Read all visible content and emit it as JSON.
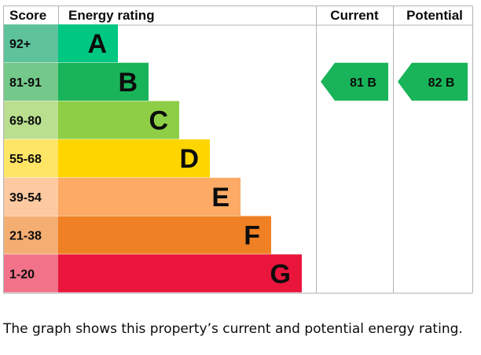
{
  "chart_data": {
    "type": "table",
    "headers": {
      "score": "Score",
      "rating": "Energy rating",
      "current": "Current",
      "potential": "Potential"
    },
    "bands": [
      {
        "score": "92+",
        "letter": "A",
        "color": "#00c781",
        "score_color": "#5ec29a",
        "letter_color": "#0b0c0c"
      },
      {
        "score": "81-91",
        "letter": "B",
        "color": "#19b459",
        "score_color": "#74c98a",
        "letter_color": "#0b0c0c"
      },
      {
        "score": "69-80",
        "letter": "C",
        "color": "#8dce46",
        "score_color": "#b9df8f",
        "letter_color": "#0b0c0c"
      },
      {
        "score": "55-68",
        "letter": "D",
        "color": "#ffd500",
        "score_color": "#ffe566",
        "letter_color": "#0b0c0c"
      },
      {
        "score": "39-54",
        "letter": "E",
        "color": "#fcaa65",
        "score_color": "#fdc9a0",
        "letter_color": "#0b0c0c"
      },
      {
        "score": "21-38",
        "letter": "F",
        "color": "#ef8023",
        "score_color": "#f5ae72",
        "letter_color": "#0b0c0c"
      },
      {
        "score": "1-20",
        "letter": "G",
        "color": "#e9153b",
        "score_color": "#f27389",
        "letter_color": "#0b0c0c"
      }
    ],
    "current": {
      "value": 81,
      "band": "B",
      "label": "81 B",
      "color": "#19b459"
    },
    "potential": {
      "value": 82,
      "band": "B",
      "label": "82 B",
      "color": "#19b459"
    },
    "grid_color": "#b1b4b6"
  },
  "caption": "The graph shows this property’s current and potential energy rating."
}
